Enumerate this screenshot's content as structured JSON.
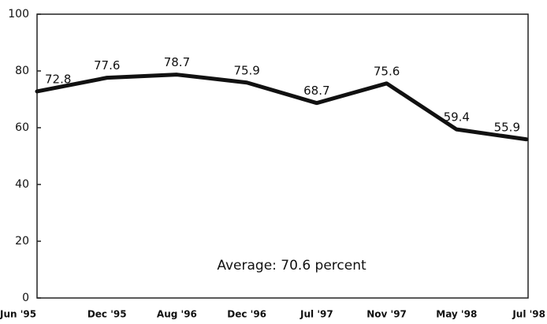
{
  "chart_data": {
    "type": "line",
    "categories": [
      "Jun '95",
      "Dec '95",
      "Aug '96",
      "Dec '96",
      "Jul '97",
      "Nov '97",
      "May '98",
      "Jul '98"
    ],
    "values": [
      72.8,
      77.6,
      78.7,
      75.9,
      68.7,
      75.6,
      59.4,
      55.9
    ],
    "color": "#111111",
    "ylim": [
      0,
      100
    ],
    "yticks": [
      0,
      20,
      40,
      60,
      80,
      100
    ],
    "annotation": "Average: 70.6 percent"
  }
}
